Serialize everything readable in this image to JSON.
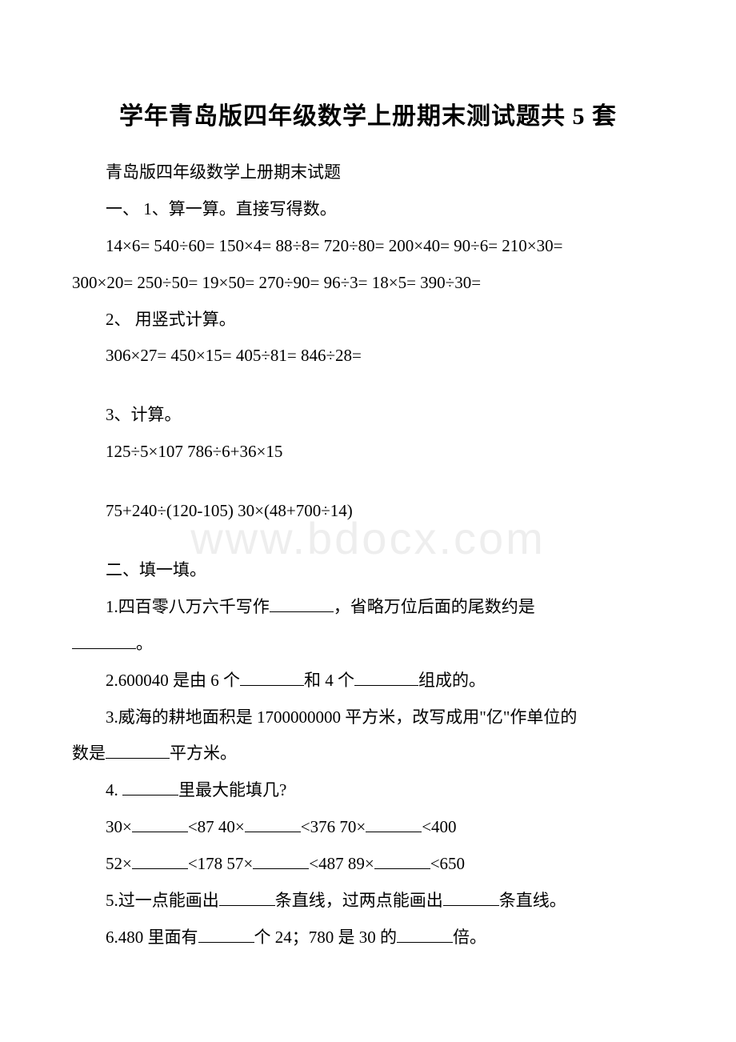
{
  "watermark": "www.bdocx.com",
  "title": "学年青岛版四年级数学上册期末测试题共 5 套",
  "subtitle": "青岛版四年级数学上册期末试题",
  "section1": {
    "heading": "一、 1、算一算。直接写得数。",
    "line1": "14×6= 540÷60= 150×4= 88÷8= 720÷80= 200×40= 90÷6= 210×30= 300×20= 250÷50= 19×50= 270÷90= 96÷3= 18×5= 390÷30=",
    "sub2": "2、 用竖式计算。",
    "line2": "306×27= 450×15= 405÷81= 846÷28=",
    "sub3": "3、计算。",
    "line3a": "125÷5×107 786÷6+36×15",
    "line3b": "75+240÷(120-105) 30×(48+700÷14)"
  },
  "section2": {
    "heading": "二、填一填。",
    "q1a": "1.四百零八万六千写作",
    "q1b": "，省略万位后面的尾数约是",
    "q1c": "。",
    "q2a": "2.600040 是由 6 个",
    "q2b": "和 4 个",
    "q2c": "组成的。",
    "q3a": "3.威海的耕地面积是 1700000000 平方米，改写成用\"亿\"作单位的数是",
    "q3b": "平方米。",
    "q4": "4. ",
    "q4b": "里最大能填几?",
    "q4l1a": " 30×",
    "q4l1b": "<87 40×",
    "q4l1c": "<376 70×",
    "q4l1d": "<400",
    "q4l2a": " 52×",
    "q4l2b": "<178 57×",
    "q4l2c": "<487 89×",
    "q4l2d": "<650",
    "q5a": "5.过一点能画出",
    "q5b": "条直线，过两点能画出",
    "q5c": "条直线。",
    "q6a": "6.480 里面有",
    "q6b": "个 24；780 是 30 的",
    "q6c": "倍。"
  },
  "colors": {
    "text": "#000000",
    "background": "#ffffff",
    "watermark": "#eeeeee"
  },
  "fonts": {
    "title_size": 30,
    "body_size": 21,
    "watermark_size": 56
  }
}
